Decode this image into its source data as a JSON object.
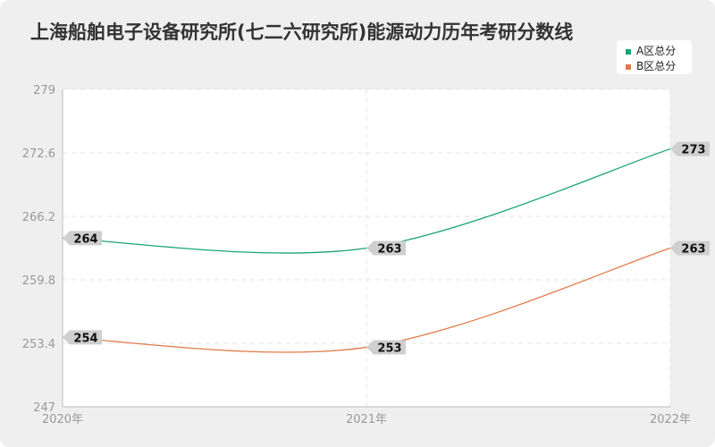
{
  "chart_data": {
    "type": "line",
    "title": "上海船舶电子设备研究所(七二六研究所)能源动力历年考研分数线",
    "categories": [
      "2020年",
      "2021年",
      "2022年"
    ],
    "series": [
      {
        "name": "A区总分",
        "values": [
          264,
          263,
          273
        ],
        "color": "#1aa37a"
      },
      {
        "name": "B区总分",
        "values": [
          254,
          253,
          263
        ],
        "color": "#e07a4a"
      }
    ],
    "yticks": [
      "247",
      "253.4",
      "259.8",
      "266.2",
      "272.6",
      "279"
    ],
    "ylim": [
      247,
      279
    ],
    "grid": true,
    "legend_position": "top-right"
  }
}
